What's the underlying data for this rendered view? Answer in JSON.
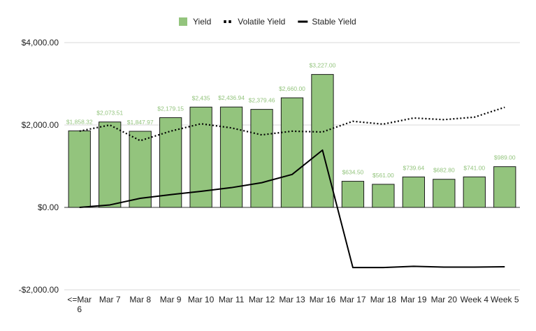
{
  "chart_data": {
    "type": "bar",
    "categories": [
      "<=Mar 6",
      "Mar 7",
      "Mar 8",
      "Mar 9",
      "Mar 10",
      "Mar 11",
      "Mar 12",
      "Mar 13",
      "Mar 16",
      "Mar 17",
      "Mar 18",
      "Mar 19",
      "Mar 20",
      "Week 4",
      "Week 5"
    ],
    "series": [
      {
        "name": "Yield",
        "kind": "bar",
        "color": "#93c47d",
        "values": [
          1858.32,
          2073.51,
          1847.97,
          2179.15,
          2435,
          2436.94,
          2379.46,
          2660,
          3227,
          634.5,
          561,
          739.64,
          682.8,
          741,
          989
        ],
        "labels": [
          "$1,858.32",
          "$2,073.51",
          "$1,847.97",
          "$2,179.15",
          "$2,435",
          "$2,436.94",
          "$2,379.46",
          "$2,660.00",
          "$3,227.00",
          "$634.50",
          "$561.00",
          "$739.64",
          "$682.80",
          "$741.00",
          "$989.00"
        ]
      },
      {
        "name": "Volatile Yield",
        "kind": "line-dotted",
        "color": "#000000",
        "values": [
          1850,
          2000,
          1620,
          1850,
          2030,
          1930,
          1760,
          1850,
          1830,
          2090,
          2020,
          2170,
          2130,
          2190,
          2430
        ]
      },
      {
        "name": "Stable Yield",
        "kind": "line",
        "color": "#000000",
        "values": [
          0,
          60,
          220,
          310,
          390,
          480,
          600,
          800,
          1390,
          -1460,
          -1460,
          -1430,
          -1450,
          -1450,
          -1440
        ]
      }
    ],
    "yticks": [
      -2000,
      0,
      2000,
      4000
    ],
    "ytick_labels": [
      "-$2,000.00",
      "$0.00",
      "$2,000.00",
      "$4,000.00"
    ],
    "ylim": [
      -2000,
      4000
    ],
    "grid": true,
    "legend_position": "top-center"
  }
}
